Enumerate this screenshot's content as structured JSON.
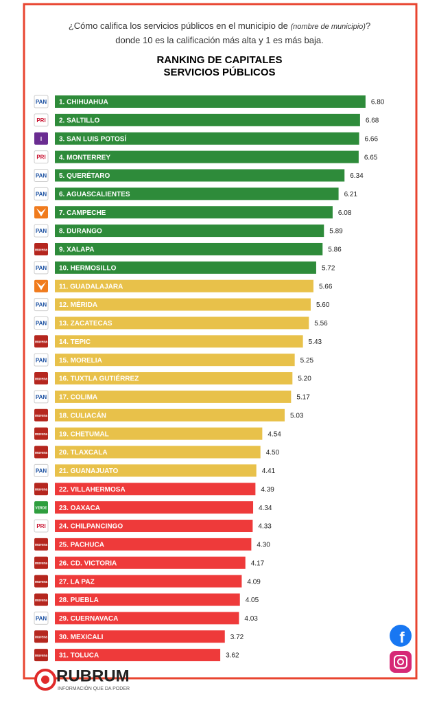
{
  "chart_data": {
    "type": "bar",
    "orientation": "horizontal",
    "question": [
      "¿Cómo califica los servicios públicos en el municipio de ",
      "(nombre de municipio)",
      "? donde 10 es la calificación más alta y 1 es más baja."
    ],
    "title": "RANKING DE CAPITALES",
    "subtitle": "SERVICIOS PÚBLICOS",
    "categories": [
      "1. CHIHUAHUA",
      "2. SALTILLO",
      "3. SAN LUIS POTOSÍ",
      "4. MONTERREY",
      "5. QUERÉTARO",
      "6. AGUASCALIENTES",
      "7. CAMPECHE",
      "8. DURANGO",
      "9. XALAPA",
      "10. HERMOSILLO",
      "11. GUADALAJARA",
      "12. MÉRIDA",
      "13. ZACATECAS",
      "14. TEPIC",
      "15. MORELIA",
      "16. TUXTLA GUTIÉRREZ",
      "17. COLIMA",
      "18. CULIACÁN",
      "19. CHETUMAL",
      "20. TLAXCALA",
      "21. GUANAJUATO",
      "22. VILLAHERMOSA",
      "23. OAXACA",
      "24. CHILPANCINGO",
      "25. PACHUCA",
      "26. CD. VICTORIA",
      "27. LA PAZ",
      "28. PUEBLA",
      "29. CUERNAVACA",
      "30. MEXICALI",
      "31. TOLUCA"
    ],
    "values": [
      6.8,
      6.68,
      6.66,
      6.65,
      6.34,
      6.21,
      6.08,
      5.89,
      5.86,
      5.72,
      5.66,
      5.6,
      5.56,
      5.43,
      5.25,
      5.2,
      5.17,
      5.03,
      4.54,
      4.5,
      4.41,
      4.39,
      4.34,
      4.33,
      4.3,
      4.17,
      4.09,
      4.05,
      4.03,
      3.72,
      3.62
    ],
    "value_labels": [
      "6.80",
      "6.68",
      "6.66",
      "6.65",
      "6.34",
      "6.21",
      "6.08",
      "5.89",
      "5.86",
      "5.72",
      "5.66",
      "5.60",
      "5.56",
      "5.43",
      "5.25",
      "5.20",
      "5.17",
      "5.03",
      "4.54",
      "4.50",
      "4.41",
      "4.39",
      "4.34",
      "4.33",
      "4.30",
      "4.17",
      "4.09",
      "4.05",
      "4.03",
      "3.72",
      "3.62"
    ],
    "colors": [
      "#2e8b3a",
      "#2e8b3a",
      "#2e8b3a",
      "#2e8b3a",
      "#2e8b3a",
      "#2e8b3a",
      "#2e8b3a",
      "#2e8b3a",
      "#2e8b3a",
      "#2e8b3a",
      "#e8c14a",
      "#e8c14a",
      "#e8c14a",
      "#e8c14a",
      "#e8c14a",
      "#e8c14a",
      "#e8c14a",
      "#e8c14a",
      "#e8c14a",
      "#e8c14a",
      "#e8c14a",
      "#ee3a3a",
      "#ee3a3a",
      "#ee3a3a",
      "#ee3a3a",
      "#ee3a3a",
      "#ee3a3a",
      "#ee3a3a",
      "#ee3a3a",
      "#ee3a3a",
      "#ee3a3a"
    ],
    "parties": [
      "PAN",
      "PRI",
      "I",
      "PRI",
      "PAN",
      "PAN",
      null,
      "PAN",
      "morena",
      "PAN",
      null,
      "PAN",
      "PAN",
      "morena",
      "PAN",
      "morena",
      "PAN",
      "morena",
      "morena",
      "morena",
      "PAN",
      "morena",
      "VERDE",
      "PRI",
      "morena",
      "morena",
      "morena",
      "morena",
      "PAN",
      "morena",
      "morena"
    ],
    "brand": "RUBRUM",
    "tagline": "INFORMACIÓN QUE DA PODER"
  }
}
